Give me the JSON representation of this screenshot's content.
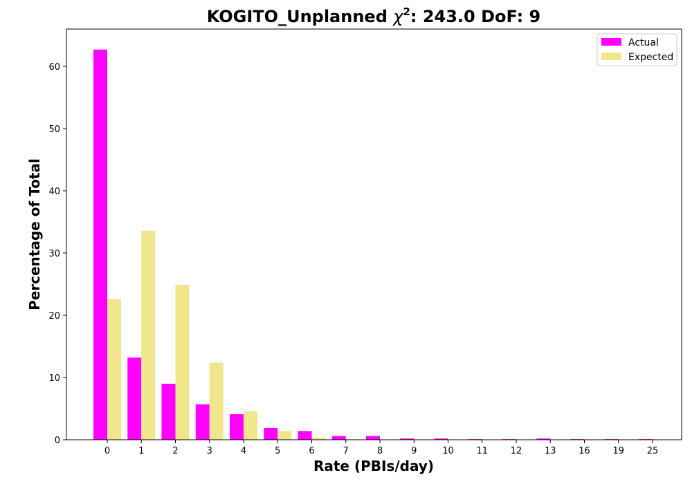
{
  "chart_data": {
    "type": "bar",
    "title_main": "KOGITO_Unplanned ",
    "title_chi": "χ",
    "title_sup": "2",
    "title_rest": ": 243.0 DoF: 9",
    "xlabel": "Rate (PBIs/day)",
    "ylabel": "Percentage of Total",
    "categories": [
      "0",
      "1",
      "2",
      "3",
      "4",
      "5",
      "6",
      "7",
      "8",
      "9",
      "10",
      "11",
      "12",
      "13",
      "16",
      "19",
      "25"
    ],
    "ylim": [
      0,
      66
    ],
    "yticks": [
      0,
      10,
      20,
      30,
      40,
      50,
      60
    ],
    "grid": false,
    "legend_position": "top-right",
    "series": [
      {
        "name": "Actual",
        "color": "#ff00ff",
        "values": [
          62.7,
          13.2,
          9.0,
          5.7,
          4.1,
          1.9,
          1.4,
          0.6,
          0.6,
          0.2,
          0.2,
          0.1,
          0.1,
          0.2,
          0.1,
          0.1,
          0.1
        ]
      },
      {
        "name": "Expected",
        "color": "#f0e68c",
        "values": [
          22.6,
          33.6,
          24.9,
          12.4,
          4.6,
          1.4,
          0.35,
          0.08,
          0.01,
          0,
          0,
          0,
          0,
          0,
          0,
          0,
          0
        ]
      }
    ]
  }
}
